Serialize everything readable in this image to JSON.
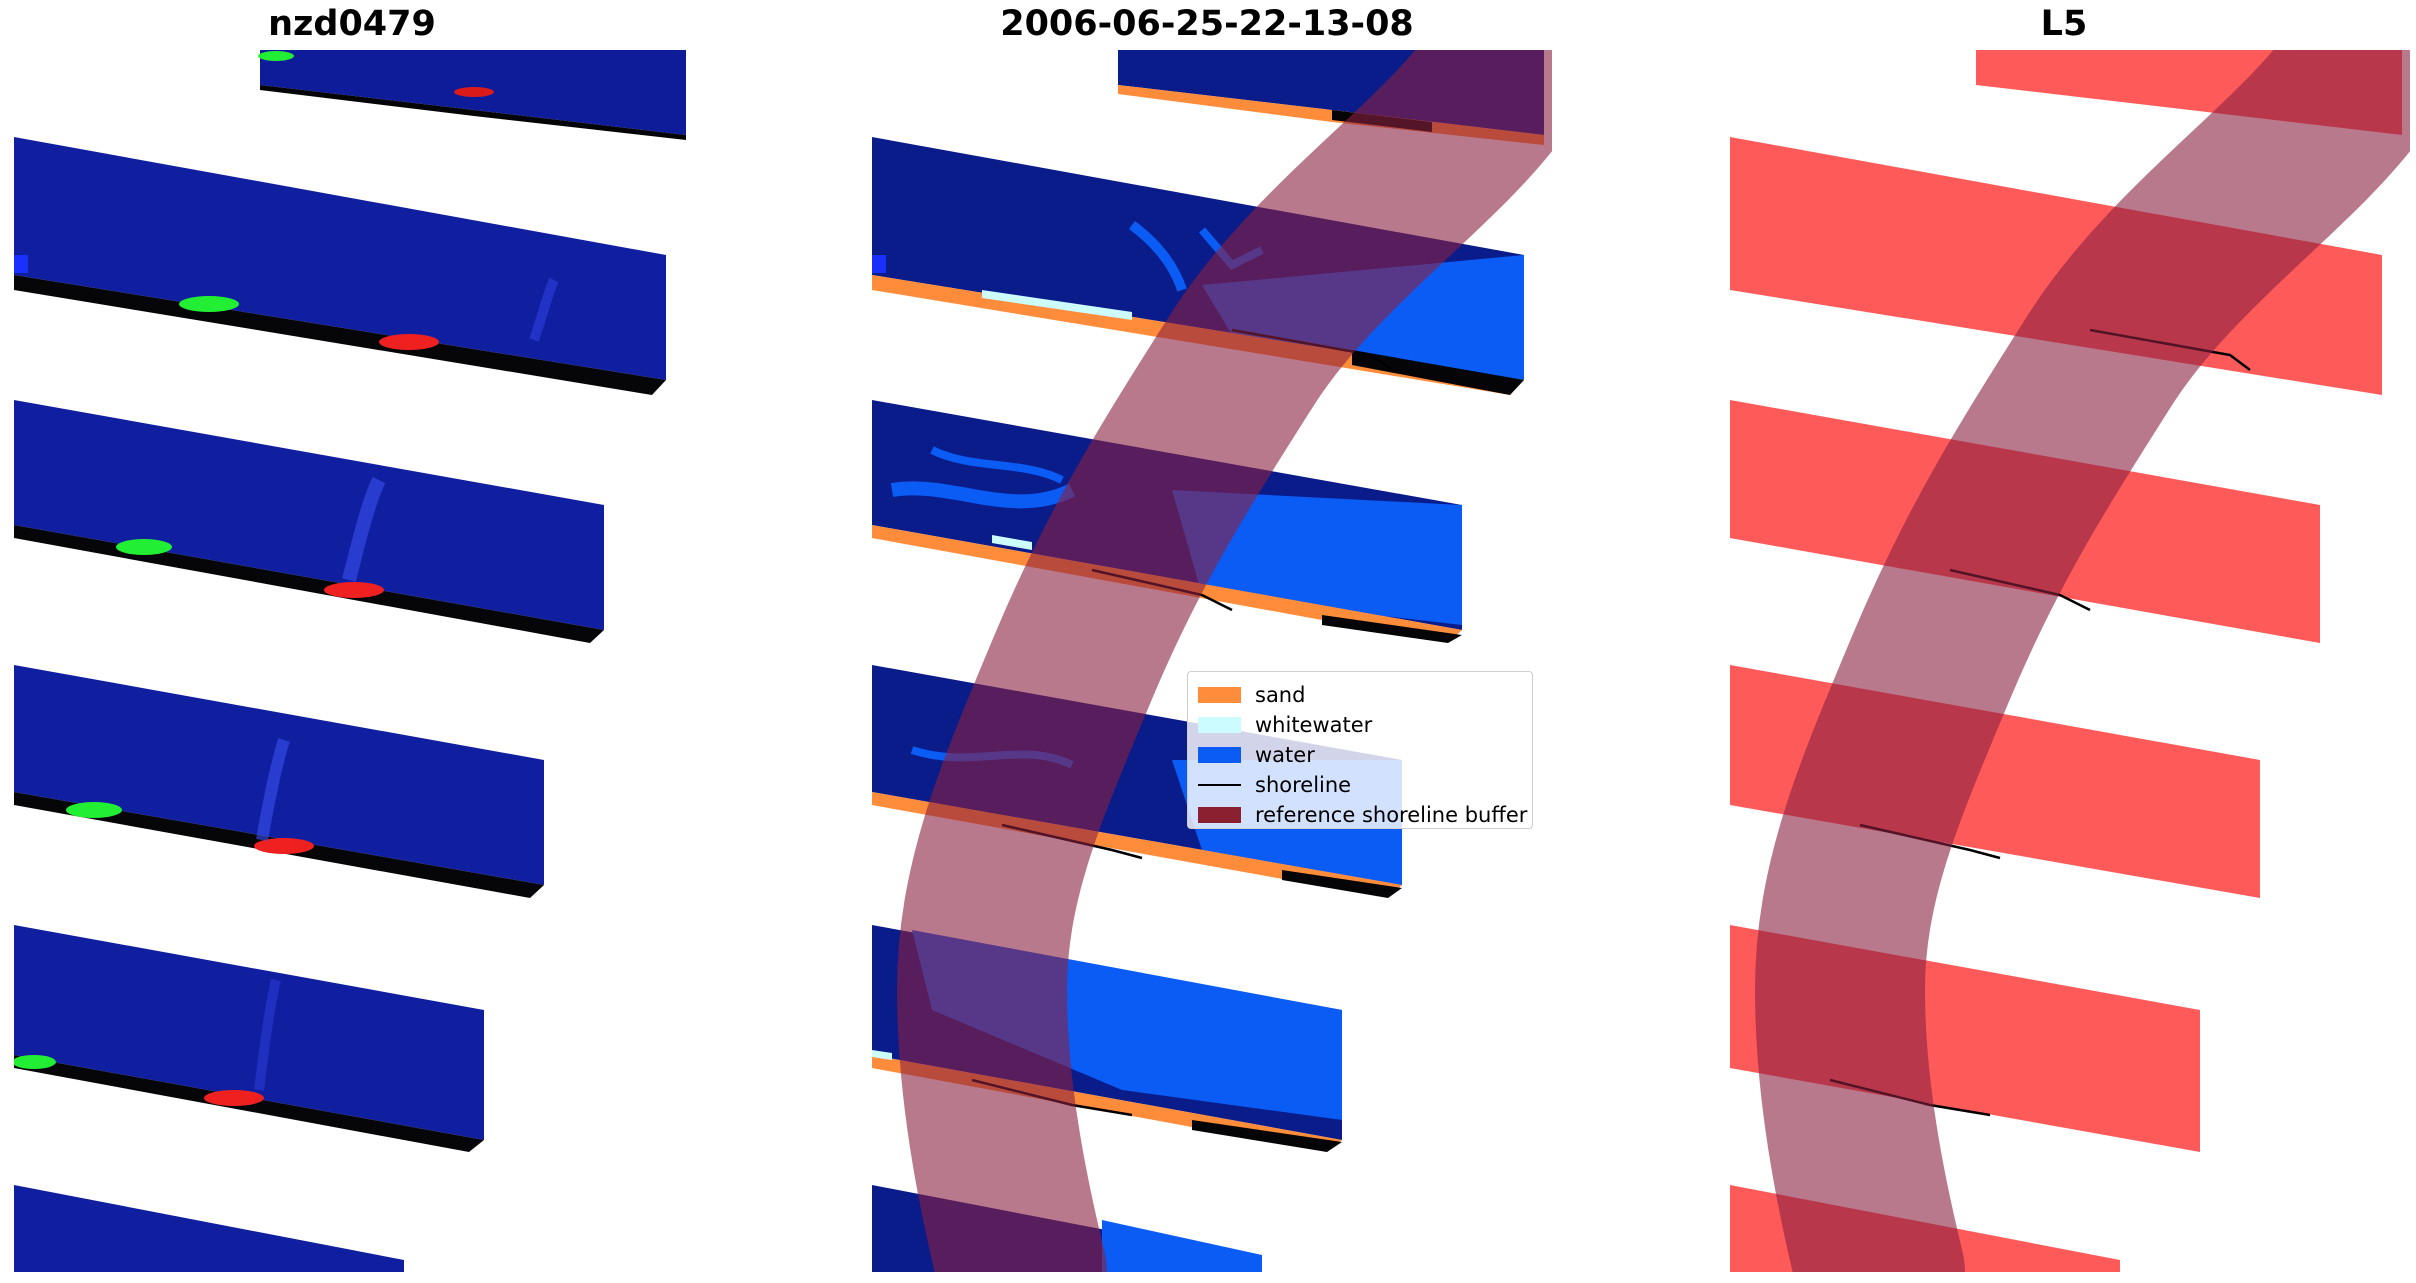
{
  "titles": {
    "left": "nzd0479",
    "center": "2006-06-25-22-13-08",
    "right": "L5"
  },
  "legend": {
    "items": [
      {
        "label": "sand",
        "color": "#ff8c3a",
        "kind": "patch"
      },
      {
        "label": "whitewater",
        "color": "#ccfcff",
        "kind": "patch"
      },
      {
        "label": "water",
        "color": "#0a5cf5",
        "kind": "patch"
      },
      {
        "label": "shoreline",
        "color": "#000000",
        "kind": "line"
      },
      {
        "label": "reference shoreline buffer",
        "color": "#8a2030",
        "kind": "patch"
      }
    ]
  },
  "colors": {
    "imagery_blue": "#101fa0",
    "class_water": "#0a5cf5",
    "class_dark_water": "#0a1b8a",
    "sand": "#ff8c3a",
    "whitewater": "#ccfcff",
    "mask_red": "#ff5a5a",
    "buffer": "#8a2040",
    "green_band": "#22ee33",
    "red_band": "#ee2020"
  }
}
